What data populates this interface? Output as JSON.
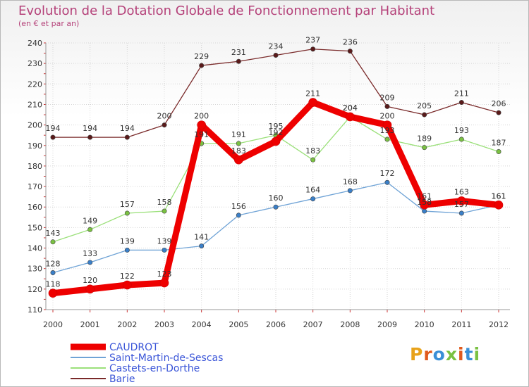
{
  "header": {
    "title": "Evolution de la Dotation Globale de Fonctionnement par Habitant",
    "subtitle": "(en € et par an)"
  },
  "logo": {
    "text": "Proxiti",
    "colors": [
      "#e8a21a",
      "#e05a1e",
      "#3a8fd6",
      "#7ac142",
      "#e05a1e",
      "#3a8fd6",
      "#7ac142"
    ]
  },
  "chart_data": {
    "type": "line",
    "x": [
      "2000",
      "2001",
      "2002",
      "2003",
      "2004",
      "2005",
      "2006",
      "2007",
      "2008",
      "2009",
      "2010",
      "2011",
      "2012"
    ],
    "ylim": [
      110,
      240
    ],
    "yticks": [
      110,
      120,
      130,
      140,
      150,
      160,
      170,
      180,
      190,
      200,
      210,
      220,
      230,
      240
    ],
    "grid": true,
    "legend_position": "bottom-left",
    "series": [
      {
        "name": "CAUDROT",
        "color": "#ee0000",
        "marker": "#ee0000",
        "values": [
          118,
          120,
          122,
          123,
          200,
          183,
          192,
          211,
          204,
          200,
          161,
          163,
          161
        ],
        "labels": [
          "118",
          "120",
          "122",
          "123",
          "200",
          "183",
          "192",
          "211",
          "204",
          "200",
          "161",
          "163",
          "161"
        ]
      },
      {
        "name": "Saint-Martin-de-Sescas",
        "color": "#6fa3d6",
        "marker": "#3a7fc8",
        "values": [
          128,
          133,
          139,
          139,
          141,
          156,
          160,
          164,
          168,
          172,
          158,
          157,
          161
        ],
        "labels": [
          "128",
          "133",
          "139",
          "139",
          "141",
          "156",
          "160",
          "164",
          "168",
          "172",
          "158",
          "157",
          "161"
        ]
      },
      {
        "name": "Castets-en-Dorthe",
        "color": "#9be07a",
        "marker": "#7ac142",
        "values": [
          143,
          149,
          157,
          158,
          191,
          191,
          195,
          183,
          204,
          193,
          189,
          193,
          187
        ],
        "labels": [
          "143",
          "149",
          "157",
          "158",
          "191",
          "191",
          "195",
          "183",
          "204",
          "193",
          "189",
          "193",
          "187"
        ]
      },
      {
        "name": "Barie",
        "color": "#7a2a2a",
        "marker": "#5a1a1a",
        "values": [
          194,
          194,
          194,
          200,
          229,
          231,
          234,
          237,
          236,
          209,
          205,
          211,
          206
        ],
        "labels": [
          "194",
          "194",
          "194",
          "200",
          "229",
          "231",
          "234",
          "237",
          "236",
          "209",
          "205",
          "211",
          "206"
        ]
      }
    ]
  }
}
